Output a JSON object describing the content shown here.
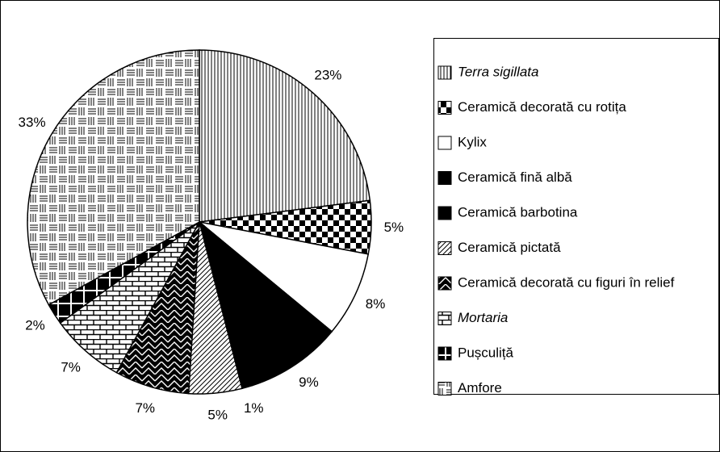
{
  "chart_data": {
    "type": "pie",
    "categories": [
      "Terra sigillata",
      "Ceramică decorată cu rotița",
      "Kylix",
      "Ceramică fină albă",
      "Ceramică barbotina",
      "Ceramică pictată",
      "Ceramică decorată cu figuri în relief",
      "Mortaria",
      "Pușculiță",
      "Amfore"
    ],
    "values": [
      23,
      5,
      8,
      9,
      1,
      5,
      7,
      7,
      2,
      33
    ],
    "value_labels": [
      "23%",
      "5%",
      "8%",
      "9%",
      "1%",
      "5%",
      "7%",
      "7%",
      "2%",
      "33%"
    ],
    "patterns": [
      "vlines",
      "checker",
      "white",
      "black",
      "black",
      "hatch",
      "herring",
      "brick",
      "cross",
      "amfore"
    ],
    "legend": "right"
  }
}
